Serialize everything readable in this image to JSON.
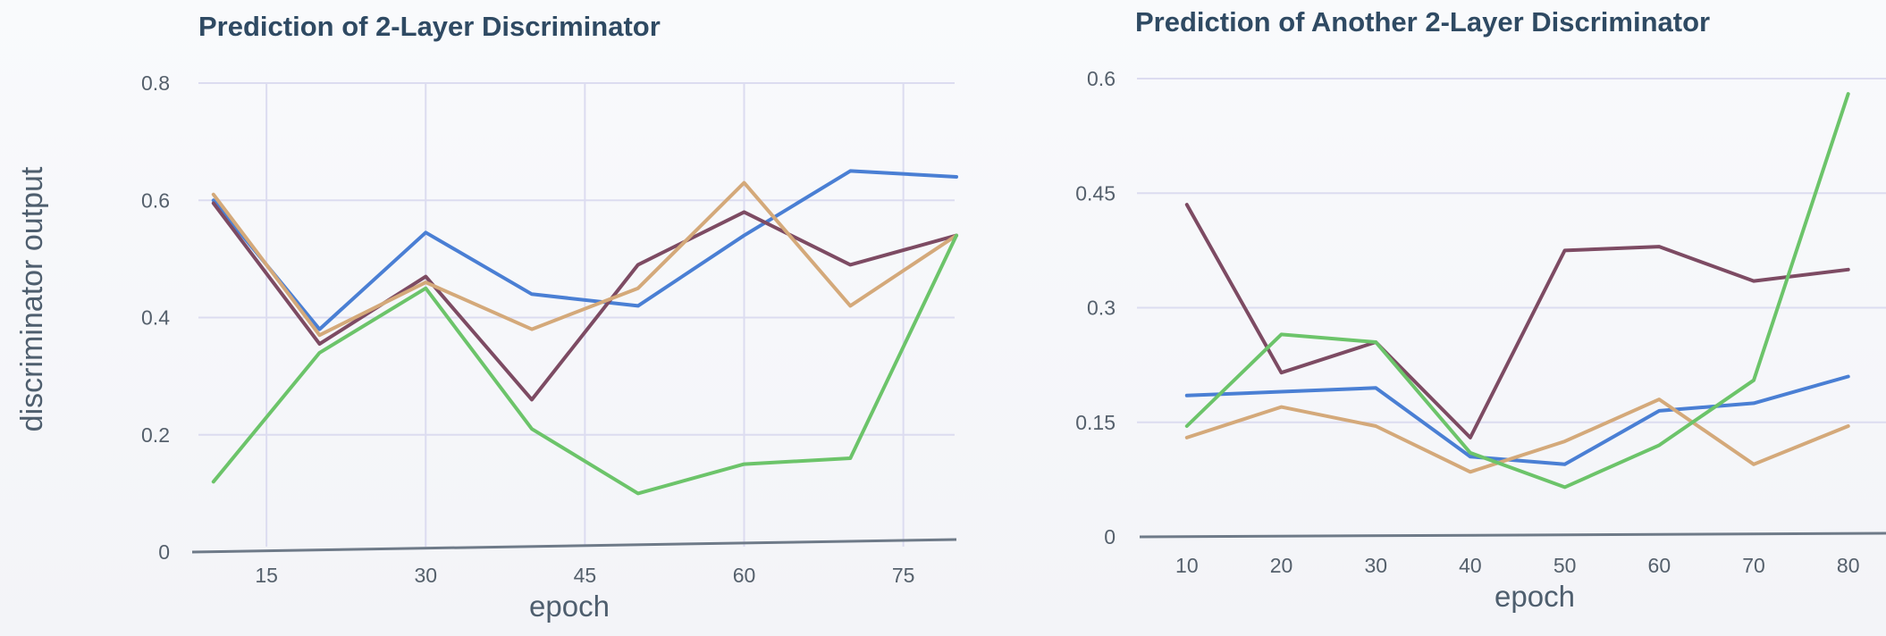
{
  "y_axis_label": "discriminator output",
  "chart_data": [
    {
      "type": "line",
      "title": "Prediction of 2-Layer Discriminator",
      "xlabel": "epoch",
      "ylabel": "discriminator output",
      "xlim": [
        8,
        80
      ],
      "ylim": [
        0,
        0.8
      ],
      "x_ticks": [
        "15",
        "30",
        "45",
        "60",
        "75"
      ],
      "y_ticks": [
        "0",
        "0.2",
        "0.4",
        "0.6",
        "0.8"
      ],
      "grid": true,
      "x": [
        10,
        20,
        30,
        40,
        50,
        60,
        70,
        80
      ],
      "series": [
        {
          "color": "#4a7fd4",
          "values": [
            0.6,
            0.38,
            0.545,
            0.44,
            0.42,
            0.54,
            0.65,
            0.64
          ]
        },
        {
          "color": "#7d4b63",
          "values": [
            0.595,
            0.355,
            0.47,
            0.26,
            0.49,
            0.58,
            0.49,
            0.54
          ]
        },
        {
          "color": "#d4a97a",
          "values": [
            0.61,
            0.37,
            0.46,
            0.38,
            0.45,
            0.63,
            0.42,
            0.54
          ]
        },
        {
          "color": "#6cc46a",
          "values": [
            0.12,
            0.34,
            0.45,
            0.21,
            0.1,
            0.15,
            0.16,
            0.54
          ]
        }
      ]
    },
    {
      "type": "line",
      "title": "Prediction of Another 2-Layer Discriminator",
      "xlabel": "epoch",
      "ylabel": "",
      "xlim": [
        5,
        84
      ],
      "ylim": [
        0,
        0.6
      ],
      "x_ticks": [
        "10",
        "20",
        "30",
        "40",
        "50",
        "60",
        "70",
        "80"
      ],
      "y_ticks": [
        "0",
        "0.15",
        "0.3",
        "0.45",
        "0.6"
      ],
      "grid": true,
      "x": [
        10,
        20,
        30,
        40,
        50,
        60,
        70,
        80
      ],
      "series": [
        {
          "color": "#4a7fd4",
          "values": [
            0.185,
            0.19,
            0.195,
            0.105,
            0.095,
            0.165,
            0.175,
            0.21
          ]
        },
        {
          "color": "#7d4b63",
          "values": [
            0.435,
            0.215,
            0.255,
            0.13,
            0.375,
            0.38,
            0.335,
            0.35
          ]
        },
        {
          "color": "#d4a97a",
          "values": [
            0.13,
            0.17,
            0.145,
            0.085,
            0.125,
            0.18,
            0.095,
            0.145
          ]
        },
        {
          "color": "#6cc46a",
          "values": [
            0.145,
            0.265,
            0.255,
            0.11,
            0.065,
            0.12,
            0.205,
            0.58
          ]
        }
      ]
    }
  ]
}
